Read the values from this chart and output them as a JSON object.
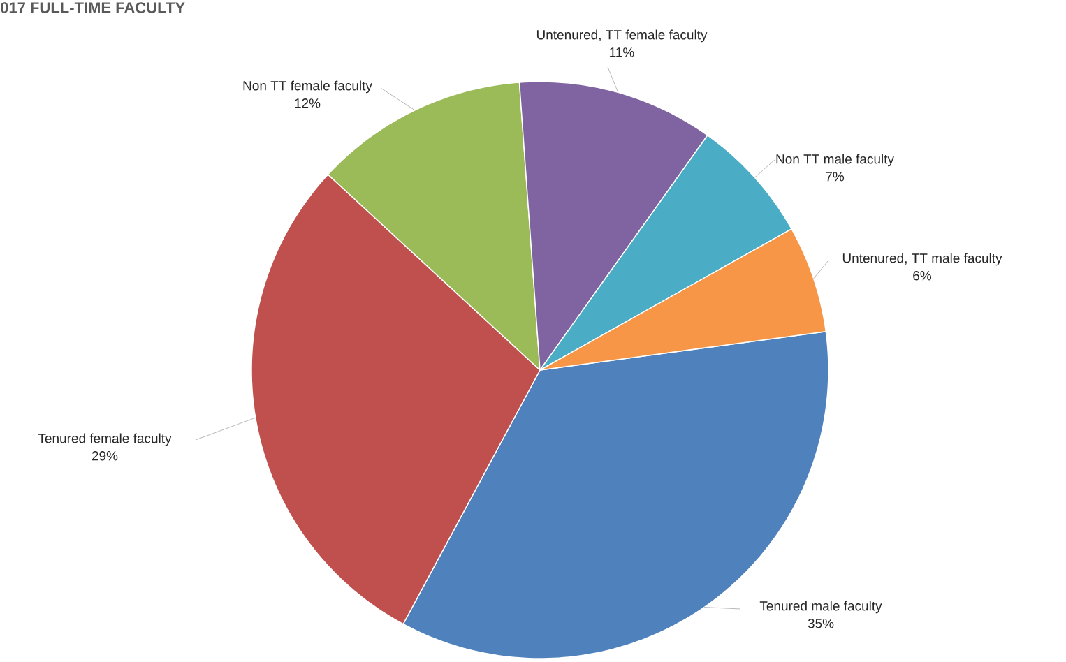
{
  "chart_data": {
    "type": "pie",
    "title": "017 FULL-TIME FACULTY",
    "categories": [
      "Tenured male faculty",
      "Tenured female faculty",
      "Non TT female faculty",
      "Untenured, TT female faculty",
      "Non TT male faculty",
      "Untenured, TT male faculty"
    ],
    "values": [
      35,
      29,
      12,
      11,
      7,
      6
    ],
    "value_labels": [
      "35%",
      "29%",
      "12%",
      "11%",
      "7%",
      "6%"
    ],
    "colors": [
      "#4f81bd",
      "#c0504d",
      "#9bbb59",
      "#8064a2",
      "#4bacc6",
      "#f79646"
    ]
  }
}
